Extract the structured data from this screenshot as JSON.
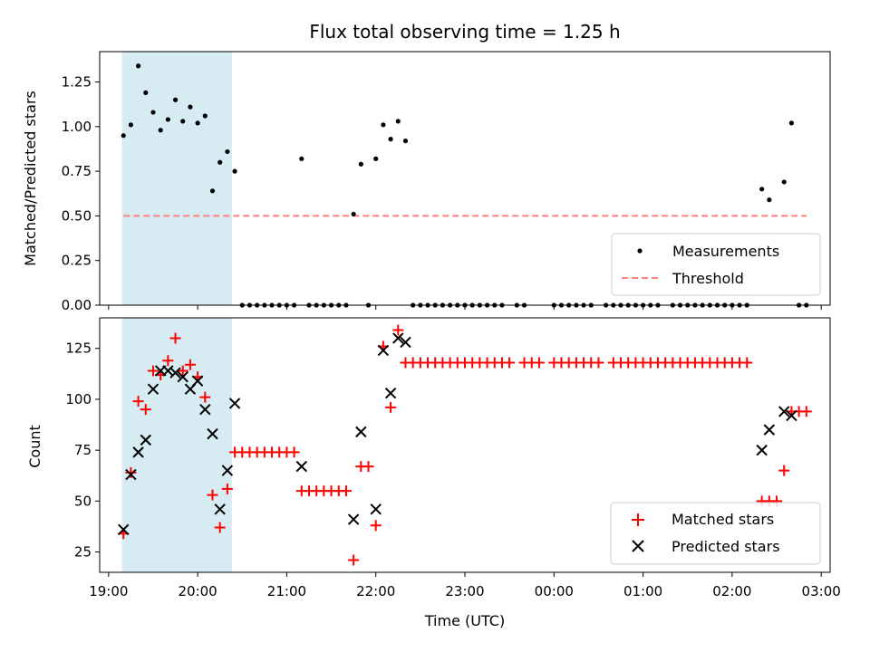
{
  "chart_data": [
    {
      "type": "scatter",
      "title": "Flux total observing time = 1.25 h",
      "xlabel": "",
      "ylabel": "Matched/Predicted stars",
      "xlim": [
        "18:54",
        "03:06"
      ],
      "ylim": [
        0,
        1.42
      ],
      "yticks": [
        "0.00",
        "0.25",
        "0.50",
        "0.75",
        "1.00",
        "1.25"
      ],
      "shaded_span": {
        "from": "19:09",
        "to": "20:23",
        "color": "#add8e6"
      },
      "legend": {
        "position": "bottom-right",
        "entries": [
          "Measurements",
          "Threshold"
        ]
      },
      "series": [
        {
          "name": "Measurements",
          "marker": "dot",
          "color": "#000000",
          "points": [
            [
              "19:10",
              0.95
            ],
            [
              "19:15",
              1.01
            ],
            [
              "19:20",
              1.34
            ],
            [
              "19:25",
              1.19
            ],
            [
              "19:30",
              1.08
            ],
            [
              "19:35",
              0.98
            ],
            [
              "19:40",
              1.04
            ],
            [
              "19:45",
              1.15
            ],
            [
              "19:50",
              1.03
            ],
            [
              "19:55",
              1.11
            ],
            [
              "20:00",
              1.02
            ],
            [
              "20:05",
              1.06
            ],
            [
              "20:10",
              0.64
            ],
            [
              "20:15",
              0.8
            ],
            [
              "20:20",
              0.86
            ],
            [
              "20:25",
              0.75
            ],
            [
              "20:30",
              0
            ],
            [
              "20:35",
              0
            ],
            [
              "20:40",
              0
            ],
            [
              "20:45",
              0
            ],
            [
              "20:50",
              0
            ],
            [
              "20:55",
              0
            ],
            [
              "21:00",
              0
            ],
            [
              "21:05",
              0
            ],
            [
              "21:10",
              0.82
            ],
            [
              "21:15",
              0
            ],
            [
              "21:20",
              0
            ],
            [
              "21:25",
              0
            ],
            [
              "21:30",
              0
            ],
            [
              "21:35",
              0
            ],
            [
              "21:40",
              0
            ],
            [
              "21:45",
              0.51
            ],
            [
              "21:50",
              0.79
            ],
            [
              "21:55",
              0
            ],
            [
              "22:00",
              0.82
            ],
            [
              "22:05",
              1.01
            ],
            [
              "22:10",
              0.93
            ],
            [
              "22:15",
              1.03
            ],
            [
              "22:20",
              0.92
            ],
            [
              "22:25",
              0
            ],
            [
              "22:30",
              0
            ],
            [
              "22:35",
              0
            ],
            [
              "22:40",
              0
            ],
            [
              "22:45",
              0
            ],
            [
              "22:50",
              0
            ],
            [
              "22:55",
              0
            ],
            [
              "23:00",
              0
            ],
            [
              "23:05",
              0
            ],
            [
              "23:10",
              0
            ],
            [
              "23:15",
              0
            ],
            [
              "23:20",
              0
            ],
            [
              "23:25",
              0
            ],
            [
              "23:35",
              0
            ],
            [
              "23:40",
              0
            ],
            [
              "00:00",
              0
            ],
            [
              "00:05",
              0
            ],
            [
              "00:10",
              0
            ],
            [
              "00:15",
              0
            ],
            [
              "00:20",
              0
            ],
            [
              "00:25",
              0
            ],
            [
              "00:35",
              0
            ],
            [
              "00:40",
              0
            ],
            [
              "00:45",
              0
            ],
            [
              "00:50",
              0
            ],
            [
              "00:55",
              0
            ],
            [
              "01:00",
              0
            ],
            [
              "01:05",
              0
            ],
            [
              "01:10",
              0
            ],
            [
              "01:20",
              0
            ],
            [
              "01:25",
              0
            ],
            [
              "01:30",
              0
            ],
            [
              "01:35",
              0
            ],
            [
              "01:40",
              0
            ],
            [
              "01:45",
              0
            ],
            [
              "01:50",
              0
            ],
            [
              "01:55",
              0
            ],
            [
              "02:00",
              0
            ],
            [
              "02:05",
              0
            ],
            [
              "02:10",
              0
            ],
            [
              "02:20",
              0.65
            ],
            [
              "02:25",
              0.59
            ],
            [
              "02:35",
              0.69
            ],
            [
              "02:40",
              1.02
            ],
            [
              "02:45",
              0
            ],
            [
              "02:50",
              0
            ]
          ]
        },
        {
          "name": "Threshold",
          "marker": "dashed-line",
          "color": "#ff7f7f",
          "points": [
            [
              "19:10",
              0.5
            ],
            [
              "02:50",
              0.5
            ]
          ]
        }
      ]
    },
    {
      "type": "scatter",
      "title": "",
      "xlabel": "Time (UTC)",
      "ylabel": "Count",
      "xlim": [
        "18:54",
        "03:06"
      ],
      "ylim": [
        15,
        140
      ],
      "xticks": [
        "19:00",
        "20:00",
        "21:00",
        "22:00",
        "23:00",
        "00:00",
        "01:00",
        "02:00",
        "03:00"
      ],
      "yticks": [
        "25",
        "50",
        "75",
        "100",
        "125"
      ],
      "shaded_span": {
        "from": "19:09",
        "to": "20:23",
        "color": "#add8e6"
      },
      "legend": {
        "position": "bottom-right",
        "entries": [
          "Matched stars",
          "Predicted stars"
        ]
      },
      "series": [
        {
          "name": "Matched stars",
          "marker": "plus",
          "color": "#ff0000",
          "points": [
            [
              "19:10",
              34
            ],
            [
              "19:15",
              64
            ],
            [
              "19:20",
              99
            ],
            [
              "19:25",
              95
            ],
            [
              "19:30",
              114
            ],
            [
              "19:35",
              112
            ],
            [
              "19:40",
              119
            ],
            [
              "19:45",
              130
            ],
            [
              "19:50",
              114
            ],
            [
              "19:55",
              117
            ],
            [
              "20:00",
              111
            ],
            [
              "20:05",
              101
            ],
            [
              "20:10",
              53
            ],
            [
              "20:15",
              37
            ],
            [
              "20:20",
              56
            ],
            [
              "20:25",
              74
            ],
            [
              "20:30",
              74
            ],
            [
              "20:35",
              74
            ],
            [
              "20:40",
              74
            ],
            [
              "20:45",
              74
            ],
            [
              "20:50",
              74
            ],
            [
              "20:55",
              74
            ],
            [
              "21:00",
              74
            ],
            [
              "21:05",
              74
            ],
            [
              "21:10",
              55
            ],
            [
              "21:15",
              55
            ],
            [
              "21:20",
              55
            ],
            [
              "21:25",
              55
            ],
            [
              "21:30",
              55
            ],
            [
              "21:35",
              55
            ],
            [
              "21:40",
              55
            ],
            [
              "21:45",
              21
            ],
            [
              "21:50",
              67
            ],
            [
              "21:55",
              67
            ],
            [
              "22:00",
              38
            ],
            [
              "22:05",
              126
            ],
            [
              "22:10",
              96
            ],
            [
              "22:15",
              134
            ],
            [
              "22:20",
              118
            ],
            [
              "22:25",
              118
            ],
            [
              "22:30",
              118
            ],
            [
              "22:35",
              118
            ],
            [
              "22:40",
              118
            ],
            [
              "22:45",
              118
            ],
            [
              "22:50",
              118
            ],
            [
              "22:55",
              118
            ],
            [
              "23:00",
              118
            ],
            [
              "23:05",
              118
            ],
            [
              "23:10",
              118
            ],
            [
              "23:15",
              118
            ],
            [
              "23:20",
              118
            ],
            [
              "23:25",
              118
            ],
            [
              "23:30",
              118
            ],
            [
              "23:40",
              118
            ],
            [
              "23:45",
              118
            ],
            [
              "23:50",
              118
            ],
            [
              "00:00",
              118
            ],
            [
              "00:05",
              118
            ],
            [
              "00:10",
              118
            ],
            [
              "00:15",
              118
            ],
            [
              "00:20",
              118
            ],
            [
              "00:25",
              118
            ],
            [
              "00:30",
              118
            ],
            [
              "00:40",
              118
            ],
            [
              "00:45",
              118
            ],
            [
              "00:50",
              118
            ],
            [
              "00:55",
              118
            ],
            [
              "01:00",
              118
            ],
            [
              "01:05",
              118
            ],
            [
              "01:10",
              118
            ],
            [
              "01:15",
              118
            ],
            [
              "01:20",
              118
            ],
            [
              "01:25",
              118
            ],
            [
              "01:30",
              118
            ],
            [
              "01:35",
              118
            ],
            [
              "01:40",
              118
            ],
            [
              "01:45",
              118
            ],
            [
              "01:50",
              118
            ],
            [
              "01:55",
              118
            ],
            [
              "02:00",
              118
            ],
            [
              "02:05",
              118
            ],
            [
              "02:10",
              118
            ],
            [
              "02:20",
              50
            ],
            [
              "02:25",
              50
            ],
            [
              "02:30",
              50
            ],
            [
              "02:35",
              65
            ],
            [
              "02:40",
              94
            ],
            [
              "02:45",
              94
            ],
            [
              "02:50",
              94
            ]
          ]
        },
        {
          "name": "Predicted stars",
          "marker": "x",
          "color": "#000000",
          "points": [
            [
              "19:10",
              36
            ],
            [
              "19:15",
              63
            ],
            [
              "19:20",
              74
            ],
            [
              "19:25",
              80
            ],
            [
              "19:30",
              105
            ],
            [
              "19:35",
              114
            ],
            [
              "19:40",
              114
            ],
            [
              "19:45",
              113
            ],
            [
              "19:50",
              111
            ],
            [
              "19:55",
              105
            ],
            [
              "20:00",
              109
            ],
            [
              "20:05",
              95
            ],
            [
              "20:10",
              83
            ],
            [
              "20:15",
              46
            ],
            [
              "20:20",
              65
            ],
            [
              "20:25",
              98
            ],
            [
              "21:10",
              67
            ],
            [
              "21:45",
              41
            ],
            [
              "21:50",
              84
            ],
            [
              "22:00",
              46
            ],
            [
              "22:05",
              124
            ],
            [
              "22:10",
              103
            ],
            [
              "22:15",
              130
            ],
            [
              "22:20",
              128
            ],
            [
              "02:20",
              75
            ],
            [
              "02:25",
              85
            ],
            [
              "02:35",
              94
            ],
            [
              "02:40",
              92
            ]
          ]
        }
      ]
    }
  ]
}
